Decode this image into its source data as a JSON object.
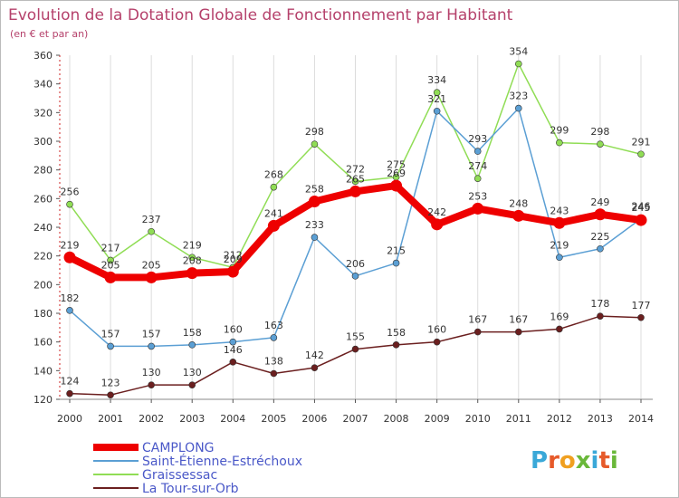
{
  "chart_data": {
    "type": "line",
    "title": "Evolution de la Dotation Globale de Fonctionnement par Habitant",
    "subtitle": "(en € et par an)",
    "categories": [
      "2000",
      "2001",
      "2002",
      "2003",
      "2004",
      "2005",
      "2006",
      "2007",
      "2008",
      "2009",
      "2010",
      "2011",
      "2012",
      "2013",
      "2014"
    ],
    "ylim": [
      120,
      360
    ],
    "yticks": [
      120,
      140,
      160,
      180,
      200,
      220,
      240,
      260,
      280,
      300,
      320,
      340,
      360
    ],
    "grid": "vertical",
    "legend_position": "bottom-left",
    "series": [
      {
        "name": "CAMPLONG",
        "color": "#ee0000",
        "values": [
          219,
          205,
          205,
          208,
          209,
          241,
          258,
          265,
          269,
          242,
          253,
          248,
          243,
          249,
          245
        ]
      },
      {
        "name": "Saint-Étienne-Estréchoux",
        "color": "#5b9fd4",
        "values": [
          182,
          157,
          157,
          158,
          160,
          163,
          233,
          206,
          215,
          321,
          293,
          323,
          219,
          225,
          246
        ]
      },
      {
        "name": "Graissessac",
        "color": "#90dd55",
        "values": [
          256,
          217,
          237,
          219,
          212,
          268,
          298,
          272,
          275,
          334,
          274,
          354,
          299,
          298,
          291
        ]
      },
      {
        "name": "La Tour-sur-Orb",
        "color": "#6b1f1f",
        "values": [
          124,
          123,
          130,
          130,
          146,
          138,
          142,
          155,
          158,
          160,
          167,
          167,
          169,
          178,
          177
        ]
      }
    ]
  },
  "logo_text": "Proxiti"
}
